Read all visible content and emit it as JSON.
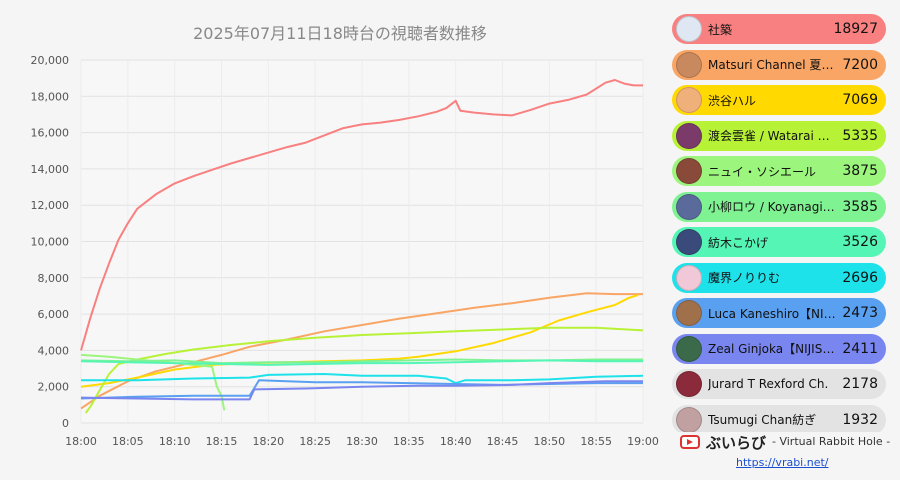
{
  "chart_data": {
    "type": "line",
    "title": "2025年07月11日18時台の視聴者数推移",
    "xlabel": "",
    "ylabel": "",
    "x_range": [
      "18:00",
      "19:00"
    ],
    "x_ticks": [
      "18:00",
      "18:05",
      "18:10",
      "18:15",
      "18:20",
      "18:25",
      "18:30",
      "18:35",
      "18:40",
      "18:45",
      "18:50",
      "18:55",
      "19:00"
    ],
    "ylim": [
      0,
      20000
    ],
    "y_ticks": [
      "0",
      "2,000",
      "4,000",
      "6,000",
      "8,000",
      "10,000",
      "12,000",
      "14,000",
      "16,000",
      "18,000",
      "20,000"
    ],
    "grid": true,
    "legend": "right",
    "series": [
      {
        "name": "社築",
        "color": "#f88080",
        "points": [
          [
            0,
            4000
          ],
          [
            1,
            5800
          ],
          [
            2,
            7400
          ],
          [
            3,
            8800
          ],
          [
            4,
            10100
          ],
          [
            5,
            11000
          ],
          [
            6,
            11800
          ],
          [
            8,
            12600
          ],
          [
            10,
            13200
          ],
          [
            12,
            13600
          ],
          [
            14,
            13950
          ],
          [
            16,
            14300
          ],
          [
            18,
            14600
          ],
          [
            20,
            14900
          ],
          [
            22,
            15200
          ],
          [
            24,
            15450
          ],
          [
            26,
            15850
          ],
          [
            28,
            16250
          ],
          [
            30,
            16450
          ],
          [
            32,
            16550
          ],
          [
            34,
            16700
          ],
          [
            36,
            16900
          ],
          [
            38,
            17150
          ],
          [
            39,
            17350
          ],
          [
            40,
            17750
          ],
          [
            40.5,
            17200
          ],
          [
            42,
            17100
          ],
          [
            44,
            17000
          ],
          [
            46,
            16950
          ],
          [
            48,
            17250
          ],
          [
            50,
            17600
          ],
          [
            52,
            17800
          ],
          [
            54,
            18100
          ],
          [
            56,
            18750
          ],
          [
            57,
            18900
          ],
          [
            58,
            18700
          ],
          [
            59,
            18600
          ],
          [
            60,
            18600
          ]
        ]
      },
      {
        "name": "Matsuri Channel 夏色まつり",
        "color": "#f9a565",
        "points": [
          [
            0,
            800
          ],
          [
            2,
            1500
          ],
          [
            5,
            2300
          ],
          [
            8,
            2850
          ],
          [
            12,
            3350
          ],
          [
            15,
            3750
          ],
          [
            18,
            4200
          ],
          [
            22,
            4600
          ],
          [
            26,
            5050
          ],
          [
            30,
            5400
          ],
          [
            34,
            5750
          ],
          [
            38,
            6050
          ],
          [
            42,
            6350
          ],
          [
            46,
            6600
          ],
          [
            50,
            6900
          ],
          [
            54,
            7150
          ],
          [
            57,
            7100
          ],
          [
            60,
            7100
          ]
        ]
      },
      {
        "name": "渋谷ハル",
        "color": "#ffd900",
        "points": [
          [
            0,
            2000
          ],
          [
            3,
            2200
          ],
          [
            6,
            2500
          ],
          [
            10,
            2950
          ],
          [
            14,
            3200
          ],
          [
            18,
            3300
          ],
          [
            22,
            3350
          ],
          [
            26,
            3400
          ],
          [
            30,
            3450
          ],
          [
            34,
            3550
          ],
          [
            36,
            3650
          ],
          [
            40,
            3950
          ],
          [
            44,
            4400
          ],
          [
            48,
            5000
          ],
          [
            51,
            5650
          ],
          [
            54,
            6100
          ],
          [
            57,
            6500
          ],
          [
            58.5,
            6900
          ],
          [
            59.5,
            7050
          ]
        ]
      },
      {
        "name": "渡会雲雀 / Watarai Hibari",
        "color": "#b7f237",
        "points": [
          [
            0.5,
            550
          ],
          [
            1,
            900
          ],
          [
            2,
            1800
          ],
          [
            3,
            2700
          ],
          [
            4,
            3250
          ],
          [
            6,
            3500
          ],
          [
            9,
            3800
          ],
          [
            12,
            4050
          ],
          [
            16,
            4300
          ],
          [
            20,
            4500
          ],
          [
            25,
            4700
          ],
          [
            30,
            4850
          ],
          [
            35,
            4950
          ],
          [
            40,
            5050
          ],
          [
            45,
            5150
          ],
          [
            50,
            5250
          ],
          [
            55,
            5250
          ],
          [
            60,
            5100
          ]
        ]
      },
      {
        "name": "ニュイ・ソシエール",
        "color": "#9cf57c",
        "points": [
          [
            0,
            3750
          ],
          [
            3,
            3650
          ],
          [
            6,
            3500
          ],
          [
            9,
            3350
          ],
          [
            12,
            3200
          ],
          [
            14,
            3100
          ],
          [
            14.5,
            2000
          ],
          [
            15,
            1500
          ],
          [
            15.3,
            700
          ]
        ]
      },
      {
        "name": "小柳ロウ / Koyanagi Rou",
        "color": "#7ff291",
        "points": [
          [
            0,
            3450
          ],
          [
            5,
            3400
          ],
          [
            10,
            3450
          ],
          [
            15,
            3300
          ],
          [
            20,
            3350
          ],
          [
            25,
            3350
          ],
          [
            30,
            3400
          ],
          [
            35,
            3450
          ],
          [
            40,
            3500
          ],
          [
            45,
            3450
          ],
          [
            50,
            3450
          ],
          [
            55,
            3500
          ],
          [
            60,
            3500
          ]
        ]
      },
      {
        "name": "紡木こかげ",
        "color": "#54f5b5",
        "points": [
          [
            0,
            3400
          ],
          [
            5,
            3350
          ],
          [
            10,
            3300
          ],
          [
            15,
            3250
          ],
          [
            20,
            3200
          ],
          [
            25,
            3250
          ],
          [
            30,
            3300
          ],
          [
            35,
            3300
          ],
          [
            40,
            3350
          ],
          [
            45,
            3400
          ],
          [
            50,
            3450
          ],
          [
            55,
            3400
          ],
          [
            60,
            3400
          ]
        ]
      },
      {
        "name": "魔界ノりりむ",
        "color": "#1de2ea",
        "points": [
          [
            0,
            2350
          ],
          [
            6,
            2350
          ],
          [
            12,
            2450
          ],
          [
            18,
            2500
          ],
          [
            20,
            2650
          ],
          [
            26,
            2700
          ],
          [
            30,
            2600
          ],
          [
            36,
            2600
          ],
          [
            39,
            2450
          ],
          [
            40,
            2200
          ],
          [
            41,
            2350
          ],
          [
            46,
            2350
          ],
          [
            50,
            2400
          ],
          [
            55,
            2550
          ],
          [
            60,
            2600
          ]
        ]
      },
      {
        "name": "Luca Kaneshiro【NIJISANJI EN】",
        "color": "#5aa0f0",
        "points": [
          [
            0,
            1350
          ],
          [
            6,
            1450
          ],
          [
            12,
            1500
          ],
          [
            18,
            1500
          ],
          [
            19,
            2350
          ],
          [
            25,
            2250
          ],
          [
            30,
            2250
          ],
          [
            35,
            2200
          ],
          [
            40,
            2150
          ],
          [
            45,
            2100
          ],
          [
            50,
            2150
          ],
          [
            55,
            2200
          ],
          [
            60,
            2200
          ]
        ]
      },
      {
        "name": "Zeal Ginjoka【NIJISANJI EN】",
        "color": "#7a86f0",
        "points": [
          [
            0,
            1400
          ],
          [
            6,
            1350
          ],
          [
            12,
            1300
          ],
          [
            18,
            1300
          ],
          [
            18.5,
            1850
          ],
          [
            24,
            1900
          ],
          [
            30,
            2000
          ],
          [
            36,
            2050
          ],
          [
            40,
            2050
          ],
          [
            46,
            2100
          ],
          [
            50,
            2200
          ],
          [
            56,
            2300
          ],
          [
            60,
            2300
          ]
        ]
      }
    ]
  },
  "ranking": [
    {
      "name": "社築",
      "count": "18927",
      "color": "#f88080",
      "avatar": "#dfe7f2"
    },
    {
      "name": "Matsuri Channel 夏色まつり",
      "count": "7200",
      "color": "#f9a565",
      "avatar": "#c8895e"
    },
    {
      "name": "渋谷ハル",
      "count": "7069",
      "color": "#ffd900",
      "avatar": "#f0b07a"
    },
    {
      "name": "渡会雲雀 / Watarai Hibari",
      "count": "5335",
      "color": "#b7f237",
      "avatar": "#7a3a6a"
    },
    {
      "name": "ニュイ・ソシエール",
      "count": "3875",
      "color": "#9cf57c",
      "avatar": "#8a4a3a"
    },
    {
      "name": "小柳ロウ / Koyanagi Rou",
      "count": "3585",
      "color": "#7ff291",
      "avatar": "#5a6a9a"
    },
    {
      "name": "紡木こかげ",
      "count": "3526",
      "color": "#54f5b5",
      "avatar": "#3a4a7a"
    },
    {
      "name": "魔界ノりりむ",
      "count": "2696",
      "color": "#1de2ea",
      "avatar": "#f0c8d8"
    },
    {
      "name": "Luca Kaneshiro【NIJISANJI EN】",
      "count": "2473",
      "color": "#5aa0f0",
      "avatar": "#a0704a"
    },
    {
      "name": "Zeal Ginjoka【NIJISANJI EN】",
      "count": "2411",
      "color": "#7a86f0",
      "avatar": "#3a6a4a"
    },
    {
      "name": "Jurard T Rexford Ch.",
      "count": "2178",
      "color": "#e3e3e3",
      "avatar": "#8a2a3a"
    },
    {
      "name": "Tsumugi Chan紡ぎ",
      "count": "1932",
      "color": "#e3e3e3",
      "avatar": "#c0a0a0"
    }
  ],
  "footer": {
    "brand": "ぶいらび",
    "subtitle": "- Virtual Rabbit Hole -",
    "url": "https://vrabi.net/",
    "icon": "youtube-play-icon"
  }
}
